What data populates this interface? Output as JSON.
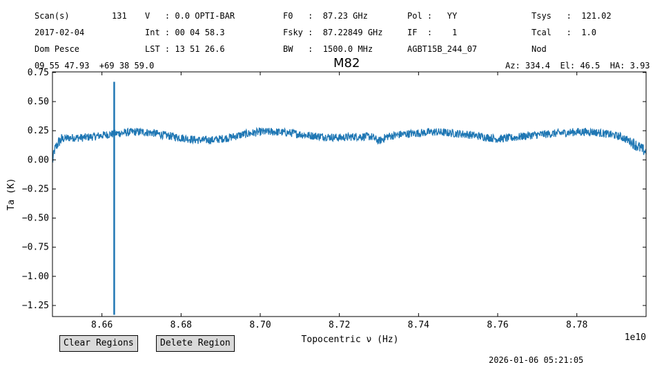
{
  "header": {
    "scan_label": "Scan(s)",
    "scan_value": "131",
    "date": "2017-02-04",
    "observer": "Dom Pesce",
    "coords": "09 55 47.93  +69 38 59.0",
    "velocity": "V   : 0.0 OPTI-BAR",
    "int_time": "Int : 00 04 58.3",
    "lst": "LST : 13 51 26.6",
    "f0": "F0   :  87.23 GHz",
    "fsky": "Fsky :  87.22849 GHz",
    "bw": "BW   :  1500.0 MHz",
    "pol": "Pol :   YY",
    "if": "IF  :    1",
    "project": "AGBT15B_244_07",
    "tsys": "Tsys   :  121.02",
    "tcal": "Tcal   :  1.0",
    "procedure": "Nod",
    "azel": "Az: 334.4  El: 46.5  HA: 3.93"
  },
  "buttons": {
    "clear_regions": "Clear Regions",
    "delete_region": "Delete Region"
  },
  "timestamp": "2026-01-06 05:21:05",
  "colors": {
    "series": "#1f77b4",
    "button_bg": "#d9d9d9"
  },
  "chart_data": {
    "type": "line",
    "title": "M82",
    "xlabel": "Topocentric ν (Hz)",
    "ylabel": "Ta (K)",
    "x_offset_label": "1e10",
    "xlim": [
      8.6475,
      8.7975
    ],
    "ylim": [
      -1.345,
      0.755
    ],
    "xticks": [
      8.66,
      8.68,
      8.7,
      8.72,
      8.74,
      8.76,
      8.78
    ],
    "xtick_labels": [
      "8.66",
      "8.68",
      "8.70",
      "8.72",
      "8.74",
      "8.76",
      "8.78"
    ],
    "yticks": [
      0.75,
      0.5,
      0.25,
      0.0,
      -0.25,
      -0.5,
      -0.75,
      -1.0,
      -1.25
    ],
    "ytick_labels": [
      "0.75",
      "0.50",
      "0.25",
      "0.00",
      "−0.25",
      "−0.50",
      "−0.75",
      "−1.00",
      "−1.25"
    ],
    "grid": false,
    "series": [
      {
        "x": [
          8.6475,
          8.648,
          8.649,
          8.65,
          8.652,
          8.655,
          8.658,
          8.66,
          8.662,
          8.665,
          8.668,
          8.67,
          8.673,
          8.676,
          8.68,
          8.684,
          8.688,
          8.692,
          8.696,
          8.7,
          8.704,
          8.708,
          8.712,
          8.716,
          8.72,
          8.724,
          8.728,
          8.73,
          8.732,
          8.736,
          8.74,
          8.744,
          8.748,
          8.752,
          8.756,
          8.76,
          8.764,
          8.768,
          8.772,
          8.776,
          8.78,
          8.784,
          8.788,
          8.791,
          8.794,
          8.796,
          8.7975
        ],
        "y": [
          -0.02,
          0.08,
          0.15,
          0.18,
          0.19,
          0.19,
          0.2,
          0.21,
          0.22,
          0.23,
          0.24,
          0.24,
          0.23,
          0.21,
          0.19,
          0.17,
          0.17,
          0.19,
          0.22,
          0.24,
          0.24,
          0.23,
          0.21,
          0.2,
          0.19,
          0.2,
          0.2,
          0.16,
          0.2,
          0.22,
          0.23,
          0.24,
          0.23,
          0.22,
          0.2,
          0.18,
          0.19,
          0.21,
          0.22,
          0.23,
          0.24,
          0.24,
          0.22,
          0.2,
          0.15,
          0.1,
          0.07
        ]
      }
    ],
    "spike": {
      "x": 8.6631,
      "y_max": 0.67,
      "y_min": -1.33
    }
  }
}
